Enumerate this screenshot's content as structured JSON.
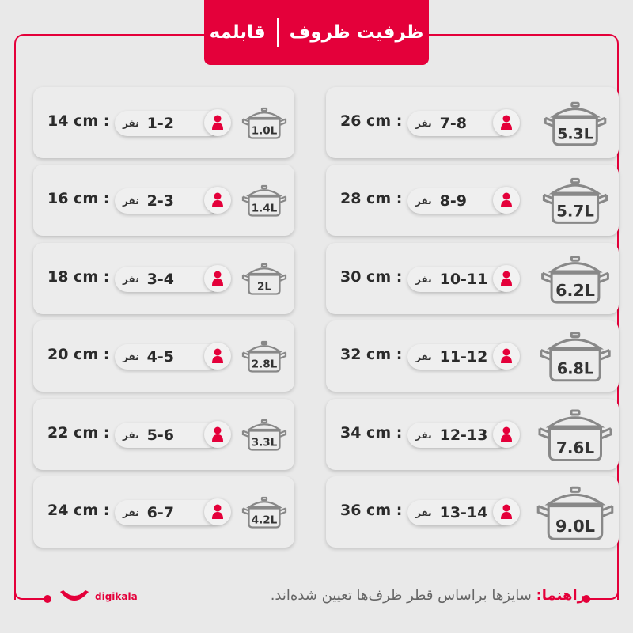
{
  "header": {
    "title": "ظرفیت ظروف",
    "subtitle": "قابلمه"
  },
  "unit_label": "نفر",
  "colors": {
    "accent": "#e4003a",
    "background": "#e9e9e9"
  },
  "left": [
    {
      "size": "14 cm :",
      "people": "1-2",
      "capacity": "1.0L"
    },
    {
      "size": "16 cm :",
      "people": "2-3",
      "capacity": "1.4L"
    },
    {
      "size": "18 cm :",
      "people": "3-4",
      "capacity": "2L"
    },
    {
      "size": "20 cm :",
      "people": "4-5",
      "capacity": "2.8L"
    },
    {
      "size": "22 cm :",
      "people": "5-6",
      "capacity": "3.3L"
    },
    {
      "size": "24 cm :",
      "people": "6-7",
      "capacity": "4.2L"
    }
  ],
  "right": [
    {
      "size": "26 cm :",
      "people": "7-8",
      "capacity": "5.3L"
    },
    {
      "size": "28 cm :",
      "people": "8-9",
      "capacity": "5.7L"
    },
    {
      "size": "30 cm :",
      "people": "10-11",
      "capacity": "6.2L"
    },
    {
      "size": "32 cm :",
      "people": "11-12",
      "capacity": "6.8L"
    },
    {
      "size": "34 cm :",
      "people": "12-13",
      "capacity": "7.6L"
    },
    {
      "size": "36 cm :",
      "people": "13-14",
      "capacity": "9.0L"
    }
  ],
  "footer": {
    "guide_label": "راهنما:",
    "guide_text": " سایزها براساس قطر ظرف‌ها تعیین شده‌اند.",
    "brand": "digikala"
  }
}
